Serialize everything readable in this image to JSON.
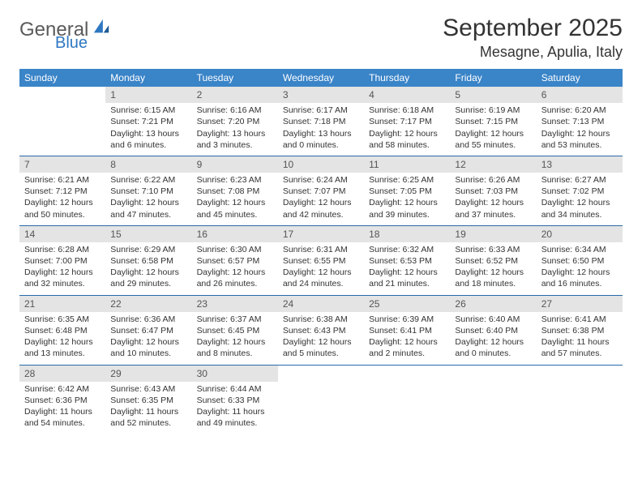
{
  "logo": {
    "general": "General",
    "blue": "Blue"
  },
  "title": "September 2025",
  "location": "Mesagne, Apulia, Italy",
  "colors": {
    "header_bg": "#3a84c8",
    "header_text": "#ffffff",
    "daynum_bg": "#e4e4e4",
    "border": "#2a6aa8",
    "text": "#333333",
    "logo_gray": "#5a5a5a",
    "logo_blue": "#2e78c2"
  },
  "weekdays": [
    "Sunday",
    "Monday",
    "Tuesday",
    "Wednesday",
    "Thursday",
    "Friday",
    "Saturday"
  ],
  "weeks": [
    [
      null,
      {
        "n": "1",
        "sr": "Sunrise: 6:15 AM",
        "ss": "Sunset: 7:21 PM",
        "dl": "Daylight: 13 hours and 6 minutes."
      },
      {
        "n": "2",
        "sr": "Sunrise: 6:16 AM",
        "ss": "Sunset: 7:20 PM",
        "dl": "Daylight: 13 hours and 3 minutes."
      },
      {
        "n": "3",
        "sr": "Sunrise: 6:17 AM",
        "ss": "Sunset: 7:18 PM",
        "dl": "Daylight: 13 hours and 0 minutes."
      },
      {
        "n": "4",
        "sr": "Sunrise: 6:18 AM",
        "ss": "Sunset: 7:17 PM",
        "dl": "Daylight: 12 hours and 58 minutes."
      },
      {
        "n": "5",
        "sr": "Sunrise: 6:19 AM",
        "ss": "Sunset: 7:15 PM",
        "dl": "Daylight: 12 hours and 55 minutes."
      },
      {
        "n": "6",
        "sr": "Sunrise: 6:20 AM",
        "ss": "Sunset: 7:13 PM",
        "dl": "Daylight: 12 hours and 53 minutes."
      }
    ],
    [
      {
        "n": "7",
        "sr": "Sunrise: 6:21 AM",
        "ss": "Sunset: 7:12 PM",
        "dl": "Daylight: 12 hours and 50 minutes."
      },
      {
        "n": "8",
        "sr": "Sunrise: 6:22 AM",
        "ss": "Sunset: 7:10 PM",
        "dl": "Daylight: 12 hours and 47 minutes."
      },
      {
        "n": "9",
        "sr": "Sunrise: 6:23 AM",
        "ss": "Sunset: 7:08 PM",
        "dl": "Daylight: 12 hours and 45 minutes."
      },
      {
        "n": "10",
        "sr": "Sunrise: 6:24 AM",
        "ss": "Sunset: 7:07 PM",
        "dl": "Daylight: 12 hours and 42 minutes."
      },
      {
        "n": "11",
        "sr": "Sunrise: 6:25 AM",
        "ss": "Sunset: 7:05 PM",
        "dl": "Daylight: 12 hours and 39 minutes."
      },
      {
        "n": "12",
        "sr": "Sunrise: 6:26 AM",
        "ss": "Sunset: 7:03 PM",
        "dl": "Daylight: 12 hours and 37 minutes."
      },
      {
        "n": "13",
        "sr": "Sunrise: 6:27 AM",
        "ss": "Sunset: 7:02 PM",
        "dl": "Daylight: 12 hours and 34 minutes."
      }
    ],
    [
      {
        "n": "14",
        "sr": "Sunrise: 6:28 AM",
        "ss": "Sunset: 7:00 PM",
        "dl": "Daylight: 12 hours and 32 minutes."
      },
      {
        "n": "15",
        "sr": "Sunrise: 6:29 AM",
        "ss": "Sunset: 6:58 PM",
        "dl": "Daylight: 12 hours and 29 minutes."
      },
      {
        "n": "16",
        "sr": "Sunrise: 6:30 AM",
        "ss": "Sunset: 6:57 PM",
        "dl": "Daylight: 12 hours and 26 minutes."
      },
      {
        "n": "17",
        "sr": "Sunrise: 6:31 AM",
        "ss": "Sunset: 6:55 PM",
        "dl": "Daylight: 12 hours and 24 minutes."
      },
      {
        "n": "18",
        "sr": "Sunrise: 6:32 AM",
        "ss": "Sunset: 6:53 PM",
        "dl": "Daylight: 12 hours and 21 minutes."
      },
      {
        "n": "19",
        "sr": "Sunrise: 6:33 AM",
        "ss": "Sunset: 6:52 PM",
        "dl": "Daylight: 12 hours and 18 minutes."
      },
      {
        "n": "20",
        "sr": "Sunrise: 6:34 AM",
        "ss": "Sunset: 6:50 PM",
        "dl": "Daylight: 12 hours and 16 minutes."
      }
    ],
    [
      {
        "n": "21",
        "sr": "Sunrise: 6:35 AM",
        "ss": "Sunset: 6:48 PM",
        "dl": "Daylight: 12 hours and 13 minutes."
      },
      {
        "n": "22",
        "sr": "Sunrise: 6:36 AM",
        "ss": "Sunset: 6:47 PM",
        "dl": "Daylight: 12 hours and 10 minutes."
      },
      {
        "n": "23",
        "sr": "Sunrise: 6:37 AM",
        "ss": "Sunset: 6:45 PM",
        "dl": "Daylight: 12 hours and 8 minutes."
      },
      {
        "n": "24",
        "sr": "Sunrise: 6:38 AM",
        "ss": "Sunset: 6:43 PM",
        "dl": "Daylight: 12 hours and 5 minutes."
      },
      {
        "n": "25",
        "sr": "Sunrise: 6:39 AM",
        "ss": "Sunset: 6:41 PM",
        "dl": "Daylight: 12 hours and 2 minutes."
      },
      {
        "n": "26",
        "sr": "Sunrise: 6:40 AM",
        "ss": "Sunset: 6:40 PM",
        "dl": "Daylight: 12 hours and 0 minutes."
      },
      {
        "n": "27",
        "sr": "Sunrise: 6:41 AM",
        "ss": "Sunset: 6:38 PM",
        "dl": "Daylight: 11 hours and 57 minutes."
      }
    ],
    [
      {
        "n": "28",
        "sr": "Sunrise: 6:42 AM",
        "ss": "Sunset: 6:36 PM",
        "dl": "Daylight: 11 hours and 54 minutes."
      },
      {
        "n": "29",
        "sr": "Sunrise: 6:43 AM",
        "ss": "Sunset: 6:35 PM",
        "dl": "Daylight: 11 hours and 52 minutes."
      },
      {
        "n": "30",
        "sr": "Sunrise: 6:44 AM",
        "ss": "Sunset: 6:33 PM",
        "dl": "Daylight: 11 hours and 49 minutes."
      },
      null,
      null,
      null,
      null
    ]
  ]
}
